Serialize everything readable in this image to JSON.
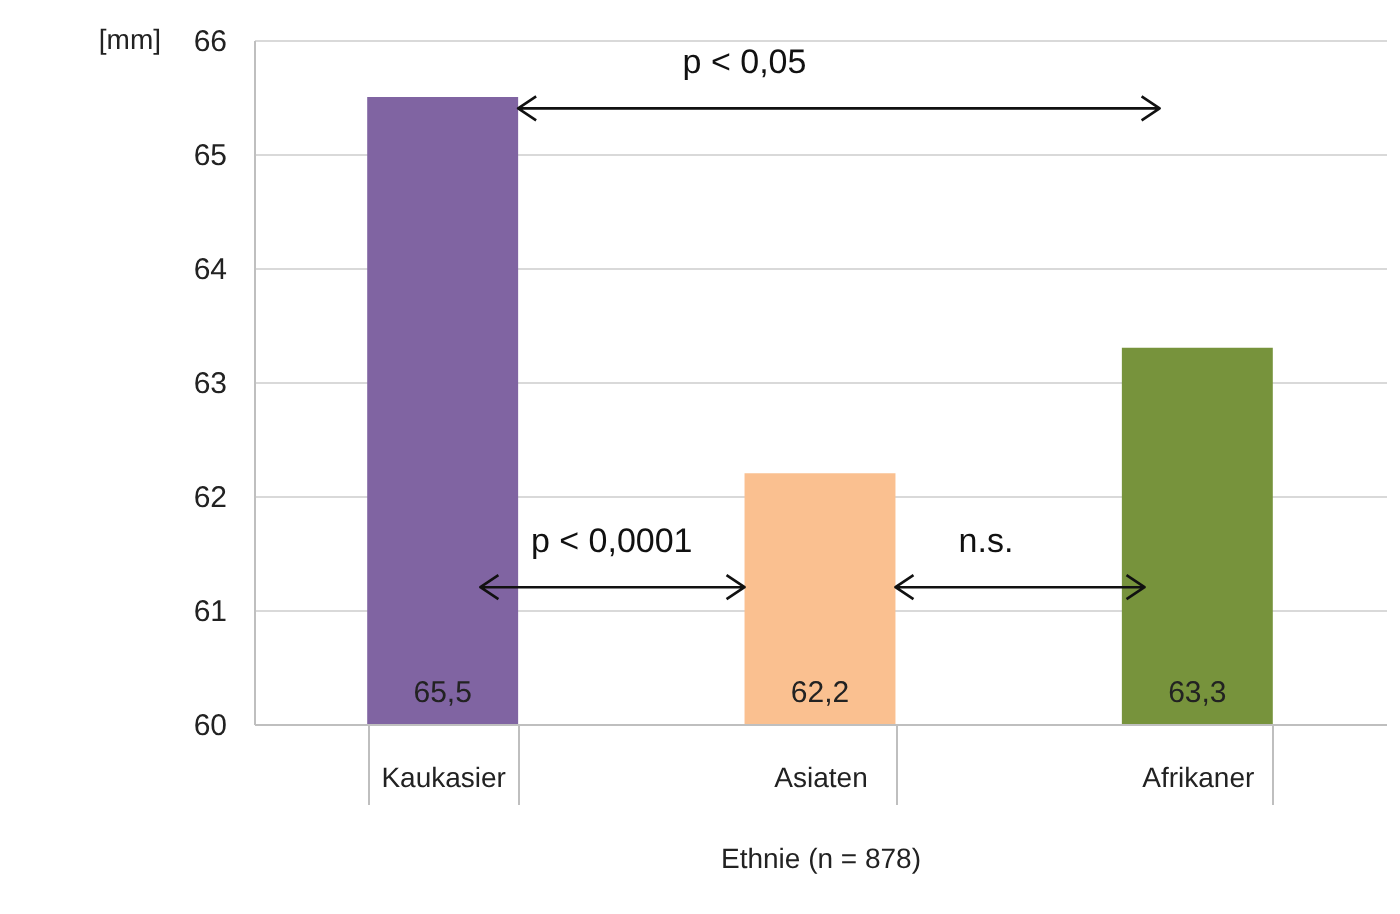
{
  "chart_data": {
    "type": "bar",
    "xlabel": "Ethnie (n = 878)",
    "ylabel": "[mm]",
    "categories": [
      "Kaukasier",
      "Asiaten",
      "Afrikaner"
    ],
    "values": [
      65.5,
      62.2,
      63.3
    ],
    "colors": [
      "#8064a2",
      "#fac090",
      "#77933c"
    ],
    "value_labels": [
      "65,5",
      "62,2",
      "63,3"
    ],
    "ylim": [
      60,
      66
    ],
    "yticks": [
      60,
      61,
      62,
      63,
      64,
      65,
      66
    ],
    "grid": "y",
    "annotations": [
      "p < 0,05",
      "p < 0,0001",
      "n.s."
    ]
  }
}
